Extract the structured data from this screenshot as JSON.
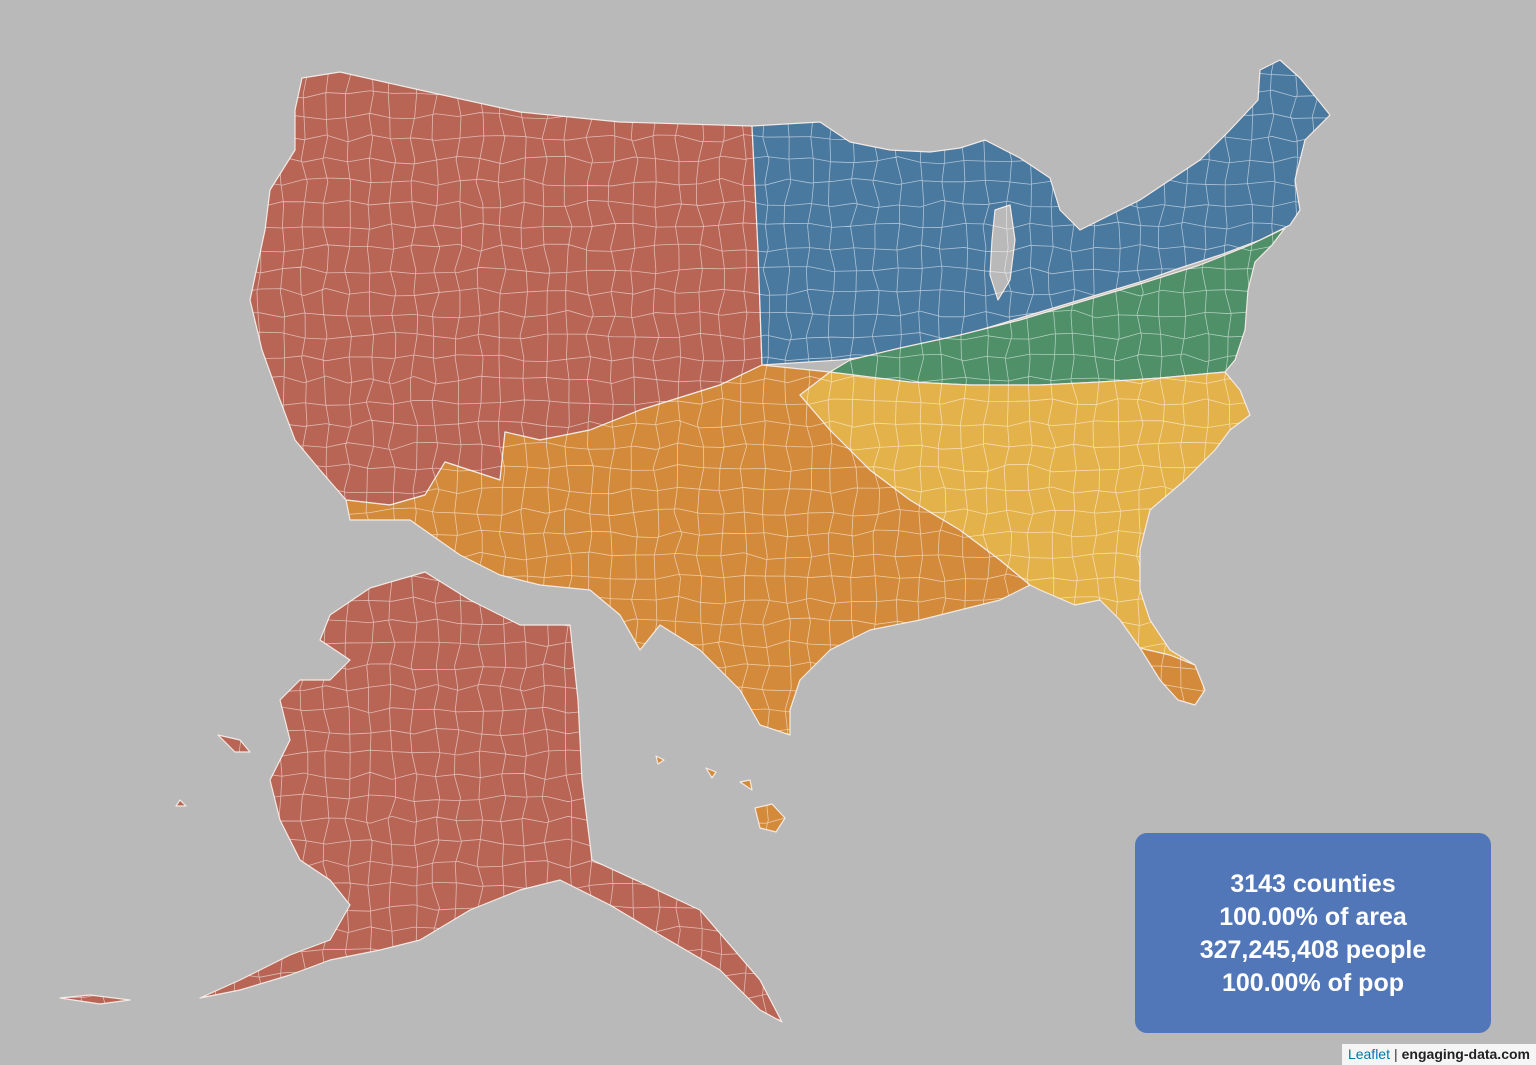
{
  "colors": {
    "background": "#b9b9b9",
    "west": "#b96556",
    "north": "#4a79a0",
    "midatlantic": "#4f9068",
    "south_central": "#d38b3b",
    "southeast": "#e4b24a",
    "info_box": "#5277b8"
  },
  "regions": [
    {
      "key": "west",
      "color_key": "west"
    },
    {
      "key": "north",
      "color_key": "north"
    },
    {
      "key": "midatlantic",
      "color_key": "midatlantic"
    },
    {
      "key": "south_central",
      "color_key": "south_central"
    },
    {
      "key": "southeast",
      "color_key": "southeast"
    }
  ],
  "info": {
    "counties": "3143 counties",
    "area": "100.00% of area",
    "people": "327,245,408 people",
    "pop": "100.00% of pop"
  },
  "attribution": {
    "leaflet": "Leaflet",
    "separator": "|",
    "site": "engaging-data.com"
  }
}
